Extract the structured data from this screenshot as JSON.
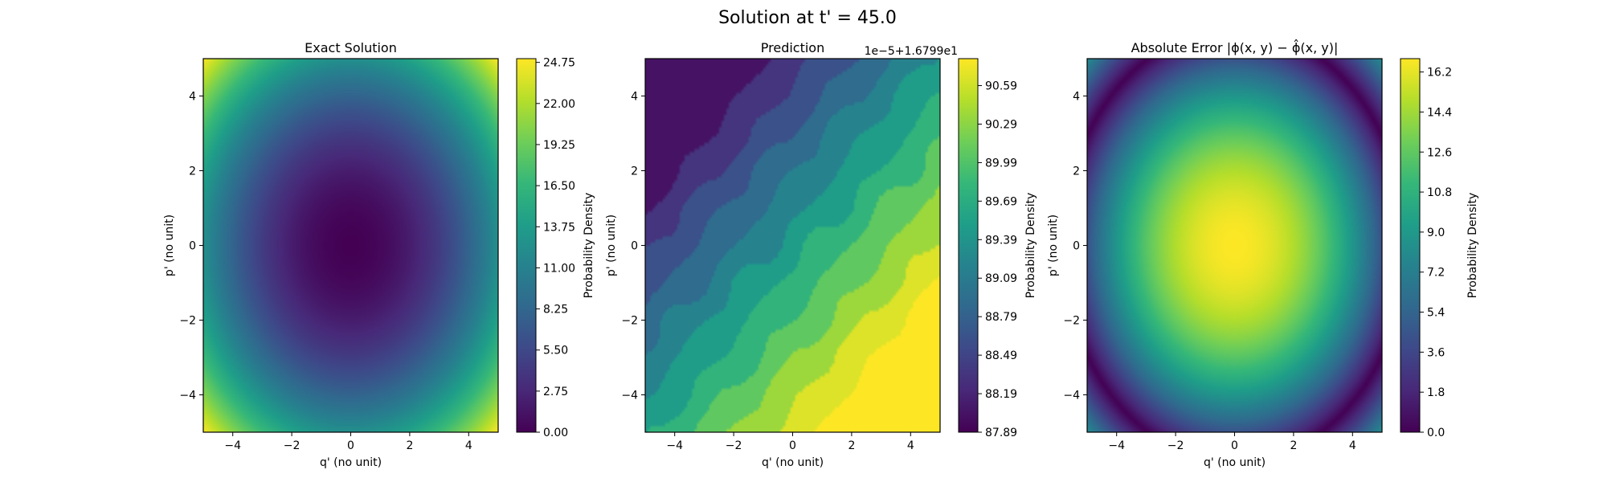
{
  "figure": {
    "suptitle": "Solution at t' = 45.0"
  },
  "colors": {
    "colormap": "viridis",
    "viridis_stops": [
      "#440154",
      "#482878",
      "#3e4989",
      "#31688e",
      "#26828e",
      "#1f9e89",
      "#35b779",
      "#6ece58",
      "#b5de2b",
      "#fde725"
    ],
    "axes_frame": "#000000",
    "background": "#ffffff"
  },
  "chart_data": [
    {
      "type": "heatmap",
      "title": "Exact Solution",
      "xlabel": "q' (no unit)",
      "ylabel": "p' (no unit)",
      "xlim": [
        -5,
        5
      ],
      "ylim": [
        -5,
        5
      ],
      "xticks": [
        "−4",
        "−2",
        "0",
        "2",
        "4"
      ],
      "yticks": [
        "4",
        "2",
        "0",
        "−2",
        "−4"
      ],
      "field": "(q^2 + p^2) * 0.5",
      "colorbar": {
        "label": "Probability Density",
        "range": [
          0,
          25
        ],
        "ticks": [
          "0.00",
          "2.75",
          "5.50",
          "8.25",
          "11.00",
          "13.75",
          "16.50",
          "19.25",
          "22.00",
          "24.75"
        ]
      },
      "grid": false
    },
    {
      "type": "heatmap",
      "title": "Prediction",
      "xlabel": "q' (no unit)",
      "ylabel": "p' (no unit)",
      "xlim": [
        -5,
        5
      ],
      "ylim": [
        -5,
        5
      ],
      "xticks": [
        "−4",
        "−2",
        "0",
        "2",
        "4"
      ],
      "yticks": [
        "4",
        "2",
        "0",
        "−2",
        "−4"
      ],
      "field": "nearly constant ≈ 16.7999 + 1e-5 × (87.9 … 90.8), increasing toward bottom-right (filled contours)",
      "colorbar": {
        "label": "Probability Density",
        "offset_label": "1e−5+1.6799e1",
        "range": [
          87.89,
          90.8
        ],
        "ticks": [
          "87.89",
          "88.19",
          "88.49",
          "88.79",
          "89.09",
          "89.39",
          "89.69",
          "89.99",
          "90.29",
          "90.59"
        ]
      },
      "grid": false
    },
    {
      "type": "heatmap",
      "title": "Absolute Error |ϕ(x, y) − ϕ̂(x, y)|",
      "xlabel": "q' (no unit)",
      "ylabel": "p' (no unit)",
      "xlim": [
        -5,
        5
      ],
      "ylim": [
        -5,
        5
      ],
      "xticks": [
        "−4",
        "−2",
        "0",
        "2",
        "4"
      ],
      "yticks": [
        "4",
        "2",
        "0",
        "−2",
        "−4"
      ],
      "field": "|16.8 − (q^2 + p^2) * 0.5|",
      "colorbar": {
        "label": "Probability Density",
        "range": [
          0,
          16.8
        ],
        "ticks": [
          "0.0",
          "1.8",
          "3.6",
          "5.4",
          "7.2",
          "9.0",
          "10.8",
          "12.6",
          "14.4",
          "16.2"
        ]
      },
      "grid": false
    }
  ]
}
